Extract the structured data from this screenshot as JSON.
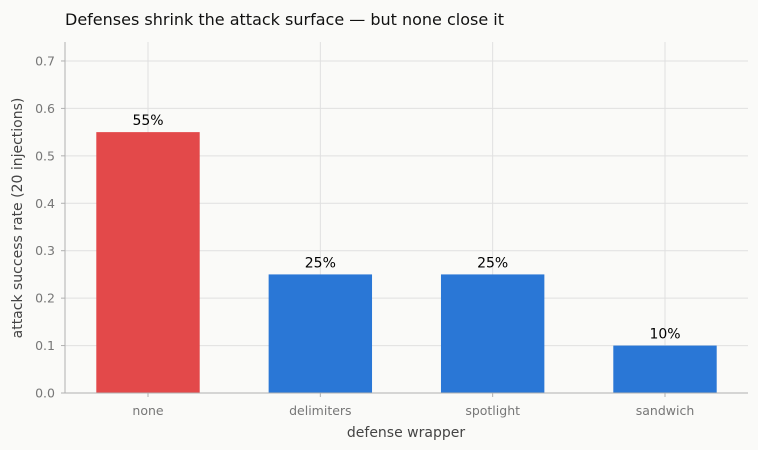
{
  "chart_data": {
    "type": "bar",
    "title": "Defenses shrink the attack surface — but none close it",
    "xlabel": "defense wrapper",
    "ylabel": "attack success rate (20 injections)",
    "categories": [
      "none",
      "delimiters",
      "spotlight",
      "sandwich"
    ],
    "values": [
      0.55,
      0.25,
      0.25,
      0.1
    ],
    "data_labels": [
      "55%",
      "25%",
      "25%",
      "10%"
    ],
    "bar_colors": [
      "#e3494a",
      "#2a77d6",
      "#2a77d6",
      "#2a77d6"
    ],
    "ylim": [
      0,
      0.74
    ],
    "yticks": [
      0.0,
      0.1,
      0.2,
      0.3,
      0.4,
      0.5,
      0.6,
      0.7
    ],
    "ytick_labels": [
      "0.0",
      "0.1",
      "0.2",
      "0.3",
      "0.4",
      "0.5",
      "0.6",
      "0.7"
    ],
    "grid": true
  }
}
